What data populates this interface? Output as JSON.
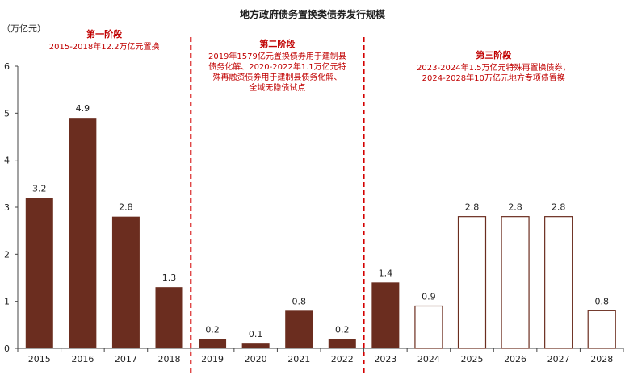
{
  "chart_data": {
    "type": "bar",
    "title": "地方政府债务置换类债券发行规模",
    "ylabel": "（万亿元）",
    "ylim": [
      0,
      6
    ],
    "yticks": [
      0,
      1,
      2,
      3,
      4,
      5,
      6
    ],
    "categories": [
      "2015",
      "2016",
      "2017",
      "2018",
      "2019",
      "2020",
      "2021",
      "2022",
      "2023",
      "2024",
      "2025",
      "2026",
      "2027",
      "2028"
    ],
    "values": [
      3.2,
      4.9,
      2.8,
      1.3,
      0.2,
      0.1,
      0.8,
      0.2,
      1.4,
      0.9,
      2.8,
      2.8,
      2.8,
      0.8
    ],
    "labels": [
      "3.2",
      "4.9",
      "2.8",
      "1.3",
      "0.2",
      "0.1",
      "0.8",
      "0.2",
      "1.4",
      "0.9",
      "2.8",
      "2.8",
      "2.8",
      "0.8"
    ],
    "bar_styles": [
      "filled",
      "filled",
      "filled",
      "filled",
      "filled",
      "filled",
      "filled",
      "filled",
      "filled",
      "hollow",
      "hollow",
      "hollow",
      "hollow",
      "hollow"
    ],
    "colors": {
      "bar": "#6b2d1f",
      "divider": "#d40000",
      "phase_text": "#c00000"
    },
    "grid": false,
    "phases": [
      {
        "title": "第一阶段",
        "lines": [
          "2015-2018年12.2万亿元置换"
        ]
      },
      {
        "title": "第二阶段",
        "lines": [
          "2019年1579亿元置换债券用于建制县",
          "债务化解、2020-2022年1.1万亿元特",
          "殊再融资债券用于建制县债务化解、",
          "全域无隐债试点"
        ]
      },
      {
        "title": "第三阶段",
        "lines": [
          "2023-2024年1.5万亿元特殊再置换债券，",
          "2024-2028年10万亿元地方专项债置换"
        ]
      }
    ]
  }
}
